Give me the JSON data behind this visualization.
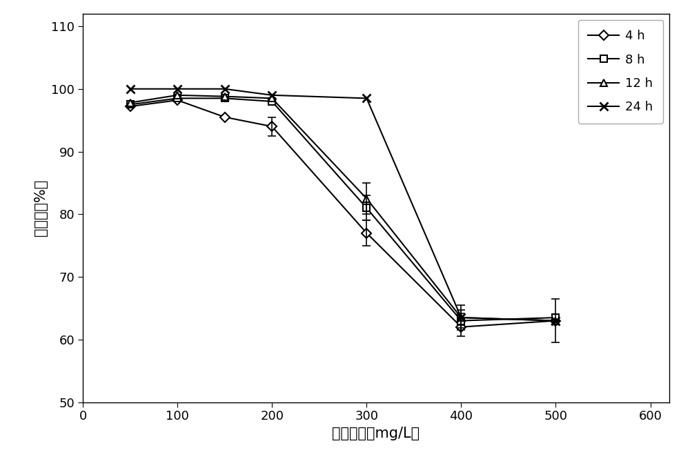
{
  "x": [
    50,
    100,
    150,
    200,
    300,
    400,
    500
  ],
  "series": {
    "4h": {
      "y": [
        97.2,
        98.2,
        95.5,
        94.0,
        77.0,
        62.0,
        63.0
      ],
      "yerr": [
        null,
        null,
        null,
        1.5,
        2.0,
        1.5,
        null
      ],
      "label": "4 h",
      "marker": "D"
    },
    "8h": {
      "y": [
        97.5,
        98.5,
        98.5,
        98.0,
        81.0,
        63.0,
        63.5
      ],
      "yerr": [
        null,
        null,
        null,
        null,
        2.0,
        1.2,
        null
      ],
      "label": "8 h",
      "marker": "s"
    },
    "12h": {
      "y": [
        97.8,
        99.0,
        98.8,
        98.5,
        82.5,
        63.5,
        63.0
      ],
      "yerr": [
        null,
        null,
        null,
        null,
        2.5,
        1.2,
        null
      ],
      "label": "12 h",
      "marker": "^"
    },
    "24h": {
      "y": [
        100.0,
        100.0,
        100.0,
        99.0,
        98.5,
        63.5,
        63.0
      ],
      "yerr": [
        null,
        null,
        null,
        null,
        null,
        2.0,
        3.5
      ],
      "label": "24 h",
      "marker": "x"
    }
  },
  "xlim": [
    0,
    620
  ],
  "ylim": [
    50,
    112
  ],
  "xticks": [
    0,
    100,
    200,
    300,
    400,
    500,
    600
  ],
  "yticks": [
    50,
    60,
    70,
    80,
    90,
    100,
    110
  ],
  "xlabel": "染料浓度（mg/L）",
  "ylabel": "脱色率（%）",
  "linecolor": "#000000",
  "legend_loc": "upper right",
  "figsize": [
    10.0,
    6.62
  ],
  "dpi": 100
}
